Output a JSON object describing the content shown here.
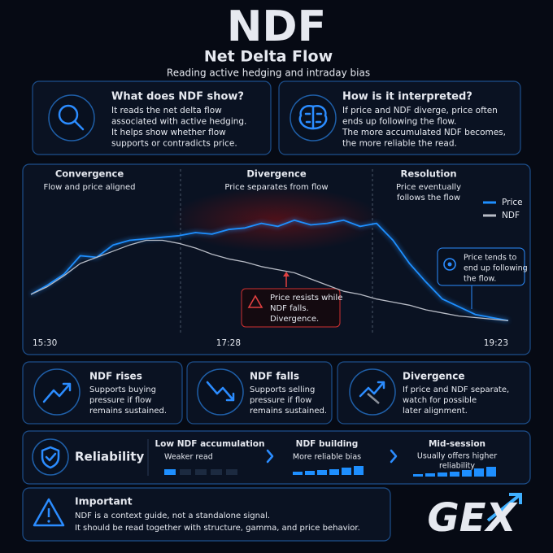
{
  "header": {
    "title": "NDF",
    "subtitle": "Net Delta Flow",
    "tagline": "Reading active hedging and intraday bias"
  },
  "cards": [
    {
      "title": "What does NDF show?",
      "lines": [
        "It reads the net delta flow",
        "associated with active hedging.",
        "It helps show whether flow",
        "supports or contradicts price."
      ]
    },
    {
      "title": "How is it interpreted?",
      "lines": [
        "If price and NDF diverge, price often",
        "ends up following the flow.",
        "The more accumulated NDF becomes,",
        "the more reliable the read."
      ]
    }
  ],
  "chart_data": {
    "type": "line",
    "phases": [
      {
        "title": "Convergence",
        "lines": [
          "Flow and price aligned"
        ]
      },
      {
        "title": "Divergence",
        "lines": [
          "Price separates from flow"
        ]
      },
      {
        "title": "Resolution",
        "lines": [
          "Price eventually",
          "follows the flow"
        ]
      }
    ],
    "annotations": [
      {
        "lines": [
          "Price resists while",
          "NDF falls.",
          "Divergence."
        ]
      },
      {
        "lines": [
          "Price tends to",
          "end up following",
          "the flow."
        ]
      }
    ],
    "categories": [
      "15:30",
      null,
      null,
      null,
      null,
      null,
      null,
      null,
      null,
      null,
      null,
      null,
      "17:28",
      null,
      null,
      null,
      null,
      null,
      null,
      null,
      null,
      null,
      null,
      null,
      null,
      null,
      null,
      null,
      null,
      "19:23"
    ],
    "series": [
      {
        "name": "Price",
        "color": "#1e8fff",
        "values": [
          20,
          26,
          33,
          45,
          44,
          52,
          55,
          56,
          57,
          58,
          60,
          59,
          62,
          63,
          66,
          64,
          68,
          65,
          66,
          68,
          64,
          66,
          55,
          40,
          28,
          17,
          12,
          7,
          5,
          3
        ]
      },
      {
        "name": "NDF",
        "color": "#b8bcc6",
        "values": [
          20,
          25,
          32,
          40,
          44,
          48,
          52,
          55,
          55,
          53,
          50,
          46,
          43,
          41,
          38,
          36,
          34,
          30,
          26,
          22,
          20,
          17,
          15,
          13,
          10,
          8,
          6,
          5,
          4,
          3
        ]
      }
    ],
    "ylim": [
      0,
      100
    ],
    "legend": "upper right"
  },
  "signals": [
    {
      "title": "NDF rises",
      "lines": [
        "Supports buying",
        "pressure if flow",
        "remains sustained."
      ]
    },
    {
      "title": "NDF falls",
      "lines": [
        "Supports selling",
        "pressure if flow",
        "remains sustained."
      ]
    },
    {
      "title": "Divergence",
      "lines": [
        "If price and NDF separate,",
        "watch for possible",
        "later alignment."
      ]
    }
  ],
  "reliability": {
    "title": "Reliability",
    "steps": [
      {
        "title": "Low NDF accumulation",
        "lines": [
          "Weaker read"
        ]
      },
      {
        "title": "NDF building",
        "lines": [
          "More reliable bias"
        ]
      },
      {
        "title": "Mid-session",
        "lines": [
          "Usually offers higher",
          "reliability"
        ]
      }
    ]
  },
  "important": {
    "title": "Important",
    "lines": [
      "NDF is a context guide, not a standalone signal.",
      "It should be read together with structure, gamma, and price behavior."
    ]
  },
  "logo": "GEX"
}
